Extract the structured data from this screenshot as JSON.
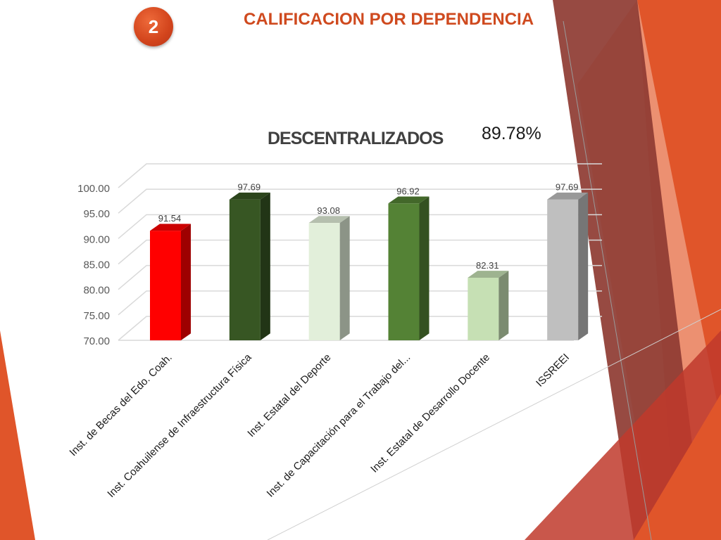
{
  "slide": {
    "badge_number": "2",
    "title": "CALIFICACION POR DEPENDENCIA",
    "chart_title": "DESCENTRALIZADOS",
    "overall_percent": "89.78%"
  },
  "colors": {
    "accent": "#cf4a1f",
    "deco_orange": "#e0552a",
    "deco_dark_red": "#8e3b32",
    "deco_salmon": "#f0a48a"
  },
  "chart_data": {
    "type": "bar",
    "title": "DESCENTRALIZADOS",
    "categories": [
      "Inst. de Becas del Edo. Coah.",
      "Inst. Coahuilense de Infraestructura Física",
      "Inst. Estatal del Deporte",
      "Inst. de Capacitación para el Trabajo del...",
      "Inst. Estatal de Desarrollo Docente",
      "ISSREEI"
    ],
    "values": [
      91.54,
      97.69,
      93.08,
      96.92,
      82.31,
      97.69
    ],
    "value_labels": [
      "91.54",
      "97.69",
      "93.08",
      "96.92",
      "82.31",
      "97.69"
    ],
    "bar_colors": [
      "#ff0000",
      "#375623",
      "#e2efda",
      "#548235",
      "#c6e0b4",
      "#bfbfbf"
    ],
    "ylim": [
      70,
      100
    ],
    "yticks": [
      70,
      75,
      80,
      85,
      90,
      95,
      100
    ],
    "ytick_labels": [
      "70.00",
      "75.00",
      "80.00",
      "85.00",
      "90.00",
      "95.00",
      "100.00"
    ],
    "grid": true,
    "style": "3d-column",
    "xlabel": "",
    "ylabel": ""
  }
}
